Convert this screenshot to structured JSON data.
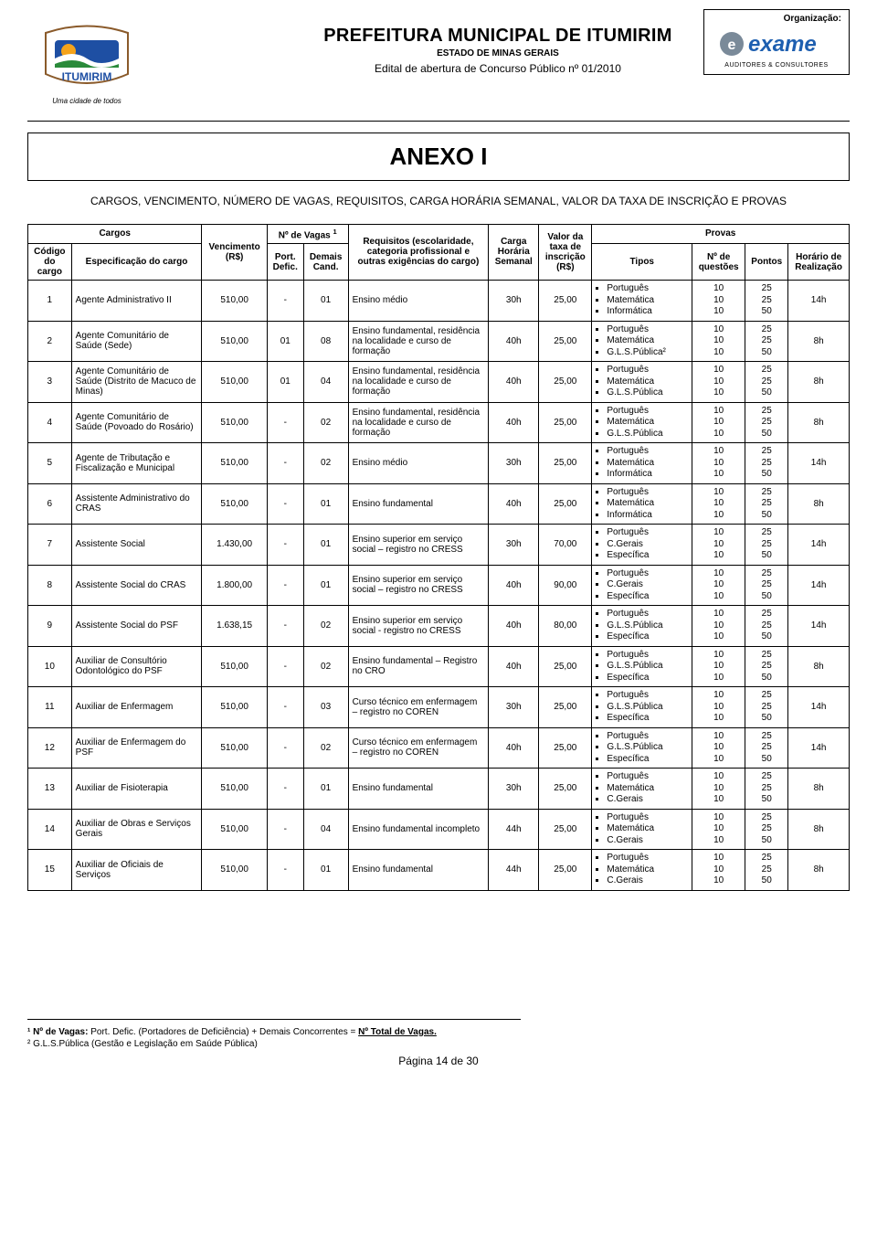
{
  "header": {
    "main_title": "PREFEITURA MUNICIPAL DE ITUMIRIM",
    "sub1": "ESTADO DE MINAS GERAIS",
    "sub2": "Edital de abertura de Concurso Público nº 01/2010",
    "logo_tagline": "Uma cidade de todos",
    "org_label": "Organização:",
    "org_name": "exame",
    "org_sub": "AUDITORES & CONSULTORES"
  },
  "colors": {
    "logo_green": "#2a8a3a",
    "logo_blue": "#1e4fa3",
    "logo_orange": "#f5a31b",
    "exame_blue": "#1e5fb0",
    "exame_gray": "#7a8a99",
    "text": "#000000",
    "border": "#000000"
  },
  "anexo": {
    "title": "ANEXO I",
    "subtitle": "CARGOS, VENCIMENTO, NÚMERO DE VAGAS, REQUISITOS, CARGA HORÁRIA SEMANAL, VALOR DA TAXA DE INSCRIÇÃO E PROVAS"
  },
  "table": {
    "head": {
      "cargos": "Cargos",
      "codigo": "Código do cargo",
      "espec": "Especificação do cargo",
      "venc": "Vencimento (R$)",
      "nvagas": "Nº de Vagas",
      "nvagas_sup": "1",
      "port_defic": "Port. Defic.",
      "demais": "Demais Cand.",
      "req": "Requisitos (escolaridade, categoria profissional e outras exigências do cargo)",
      "carga": "Carga Horária Semanal",
      "taxa": "Valor da taxa de inscrição (R$)",
      "provas": "Provas",
      "tipos": "Tipos",
      "nq": "Nº de questões",
      "pontos": "Pontos",
      "horario": "Horário de Realização"
    },
    "rows": [
      {
        "codigo": "1",
        "espec": "Agente Administrativo II",
        "venc": "510,00",
        "pd": "-",
        "dc": "01",
        "req": "Ensino médio",
        "carga": "30h",
        "taxa": "25,00",
        "tipos": [
          "Português",
          "Matemática",
          "Informática"
        ],
        "nq": [
          "10",
          "10",
          "10"
        ],
        "pts": [
          "25",
          "25",
          "50"
        ],
        "hr": "14h"
      },
      {
        "codigo": "2",
        "espec": "Agente Comunitário de Saúde (Sede)",
        "venc": "510,00",
        "pd": "01",
        "dc": "08",
        "req": "Ensino fundamental, residência na localidade e curso de formação",
        "carga": "40h",
        "taxa": "25,00",
        "tipos": [
          "Português",
          "Matemática",
          "G.L.S.Pública²"
        ],
        "nq": [
          "10",
          "10",
          "10"
        ],
        "pts": [
          "25",
          "25",
          "50"
        ],
        "hr": "8h"
      },
      {
        "codigo": "3",
        "espec": "Agente Comunitário de Saúde (Distrito de Macuco de Minas)",
        "venc": "510,00",
        "pd": "01",
        "dc": "04",
        "req": "Ensino fundamental, residência na localidade e curso de formação",
        "carga": "40h",
        "taxa": "25,00",
        "tipos": [
          "Português",
          "Matemática",
          "G.L.S.Pública"
        ],
        "nq": [
          "10",
          "10",
          "10"
        ],
        "pts": [
          "25",
          "25",
          "50"
        ],
        "hr": "8h"
      },
      {
        "codigo": "4",
        "espec": "Agente Comunitário de Saúde (Povoado do Rosário)",
        "venc": "510,00",
        "pd": "-",
        "dc": "02",
        "req": "Ensino fundamental, residência na localidade e curso de formação",
        "carga": "40h",
        "taxa": "25,00",
        "tipos": [
          "Português",
          "Matemática",
          "G.L.S.Pública"
        ],
        "nq": [
          "10",
          "10",
          "10"
        ],
        "pts": [
          "25",
          "25",
          "50"
        ],
        "hr": "8h"
      },
      {
        "codigo": "5",
        "espec": "Agente de Tributação e Fiscalização e Municipal",
        "venc": "510,00",
        "pd": "-",
        "dc": "02",
        "req": "Ensino médio",
        "carga": "30h",
        "taxa": "25,00",
        "tipos": [
          "Português",
          "Matemática",
          "Informática"
        ],
        "nq": [
          "10",
          "10",
          "10"
        ],
        "pts": [
          "25",
          "25",
          "50"
        ],
        "hr": "14h"
      },
      {
        "codigo": "6",
        "espec": "Assistente Administrativo do CRAS",
        "venc": "510,00",
        "pd": "-",
        "dc": "01",
        "req": "Ensino fundamental",
        "carga": "40h",
        "taxa": "25,00",
        "tipos": [
          "Português",
          "Matemática",
          "Informática"
        ],
        "nq": [
          "10",
          "10",
          "10"
        ],
        "pts": [
          "25",
          "25",
          "50"
        ],
        "hr": "8h"
      },
      {
        "codigo": "7",
        "espec": "Assistente Social",
        "venc": "1.430,00",
        "pd": "-",
        "dc": "01",
        "req": "Ensino superior em serviço social – registro no CRESS",
        "carga": "30h",
        "taxa": "70,00",
        "tipos": [
          "Português",
          "C.Gerais",
          "Específica"
        ],
        "nq": [
          "10",
          "10",
          "10"
        ],
        "pts": [
          "25",
          "25",
          "50"
        ],
        "hr": "14h"
      },
      {
        "codigo": "8",
        "espec": "Assistente Social do CRAS",
        "venc": "1.800,00",
        "pd": "-",
        "dc": "01",
        "req": "Ensino superior em serviço social – registro no CRESS",
        "carga": "40h",
        "taxa": "90,00",
        "tipos": [
          "Português",
          "C.Gerais",
          "Específica"
        ],
        "nq": [
          "10",
          "10",
          "10"
        ],
        "pts": [
          "25",
          "25",
          "50"
        ],
        "hr": "14h"
      },
      {
        "codigo": "9",
        "espec": "Assistente Social do PSF",
        "venc": "1.638,15",
        "pd": "-",
        "dc": "02",
        "req": "Ensino superior em serviço social - registro no CRESS",
        "carga": "40h",
        "taxa": "80,00",
        "tipos": [
          "Português",
          "G.L.S.Pública",
          "Específica"
        ],
        "nq": [
          "10",
          "10",
          "10"
        ],
        "pts": [
          "25",
          "25",
          "50"
        ],
        "hr": "14h"
      },
      {
        "codigo": "10",
        "espec": "Auxiliar de Consultório Odontológico do PSF",
        "venc": "510,00",
        "pd": "-",
        "dc": "02",
        "req": "Ensino fundamental – Registro no CRO",
        "carga": "40h",
        "taxa": "25,00",
        "tipos": [
          "Português",
          "G.L.S.Pública",
          "Específica"
        ],
        "nq": [
          "10",
          "10",
          "10"
        ],
        "pts": [
          "25",
          "25",
          "50"
        ],
        "hr": "8h"
      },
      {
        "codigo": "11",
        "espec": "Auxiliar de Enfermagem",
        "venc": "510,00",
        "pd": "-",
        "dc": "03",
        "req": "Curso técnico em enfermagem – registro no COREN",
        "carga": "30h",
        "taxa": "25,00",
        "tipos": [
          "Português",
          "G.L.S.Pública",
          "Específica"
        ],
        "nq": [
          "10",
          "10",
          "10"
        ],
        "pts": [
          "25",
          "25",
          "50"
        ],
        "hr": "14h"
      },
      {
        "codigo": "12",
        "espec": "Auxiliar de Enfermagem do PSF",
        "venc": "510,00",
        "pd": "-",
        "dc": "02",
        "req": "Curso técnico em enfermagem – registro no COREN",
        "carga": "40h",
        "taxa": "25,00",
        "tipos": [
          "Português",
          "G.L.S.Pública",
          "Específica"
        ],
        "nq": [
          "10",
          "10",
          "10"
        ],
        "pts": [
          "25",
          "25",
          "50"
        ],
        "hr": "14h"
      },
      {
        "codigo": "13",
        "espec": "Auxiliar de Fisioterapia",
        "venc": "510,00",
        "pd": "-",
        "dc": "01",
        "req": "Ensino fundamental",
        "carga": "30h",
        "taxa": "25,00",
        "tipos": [
          "Português",
          "Matemática",
          "C.Gerais"
        ],
        "nq": [
          "10",
          "10",
          "10"
        ],
        "pts": [
          "25",
          "25",
          "50"
        ],
        "hr": "8h"
      },
      {
        "codigo": "14",
        "espec": "Auxiliar de Obras e Serviços Gerais",
        "venc": "510,00",
        "pd": "-",
        "dc": "04",
        "req": "Ensino fundamental incompleto",
        "carga": "44h",
        "taxa": "25,00",
        "tipos": [
          "Português",
          "Matemática",
          "C.Gerais"
        ],
        "nq": [
          "10",
          "10",
          "10"
        ],
        "pts": [
          "25",
          "25",
          "50"
        ],
        "hr": "8h"
      },
      {
        "codigo": "15",
        "espec": "Auxiliar de Oficiais de Serviços",
        "venc": "510,00",
        "pd": "-",
        "dc": "01",
        "req": "Ensino fundamental",
        "carga": "44h",
        "taxa": "25,00",
        "tipos": [
          "Português",
          "Matemática",
          "C.Gerais"
        ],
        "nq": [
          "10",
          "10",
          "10"
        ],
        "pts": [
          "25",
          "25",
          "50"
        ],
        "hr": "8h"
      }
    ]
  },
  "footnotes": {
    "f1_label": "¹ Nº de Vagas:",
    "f1_text": " Port. Defic. (Portadores de Deficiência) + Demais Concorrentes = ",
    "f1_bold": "Nº Total de Vagas.",
    "f2": "² G.L.S.Pública (Gestão e Legislação em Saúde Pública)"
  },
  "page_number": "Página 14 de 30"
}
